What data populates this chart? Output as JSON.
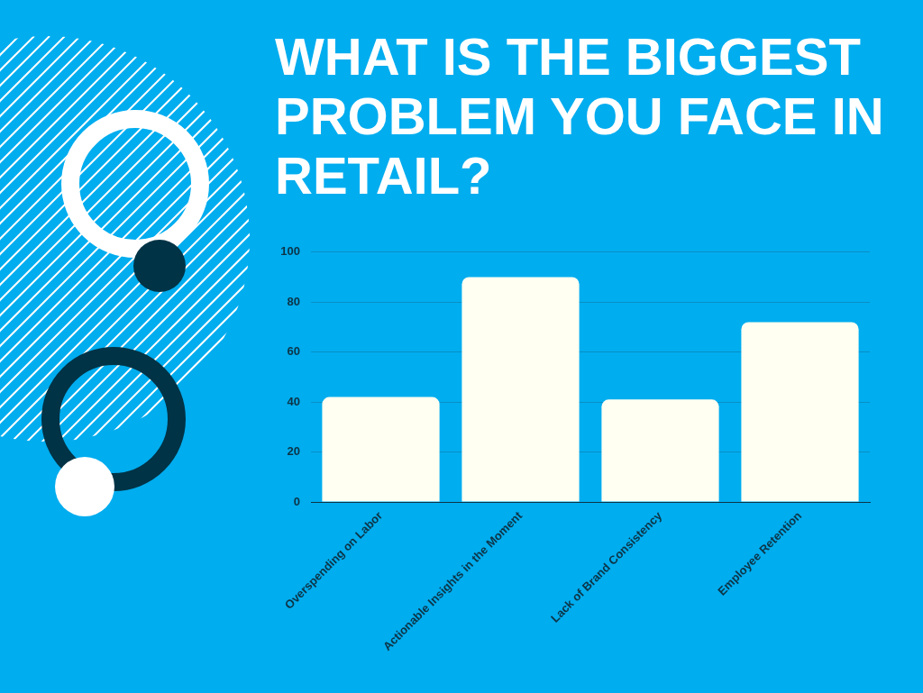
{
  "chart_data": {
    "type": "bar",
    "title": "WHAT IS THE BIGGEST PROBLEM YOU FACE IN RETAIL?",
    "categories": [
      "Overspending on Labor",
      "Actionable Insights in the Moment",
      "Lack of Brand Consistency",
      "Employee Retention"
    ],
    "values": [
      42,
      90,
      41,
      72
    ],
    "color": "#fffff2",
    "ylim": [
      0,
      100
    ],
    "yticks": [
      0,
      20,
      40,
      60,
      80,
      100
    ],
    "grid": "y"
  }
}
